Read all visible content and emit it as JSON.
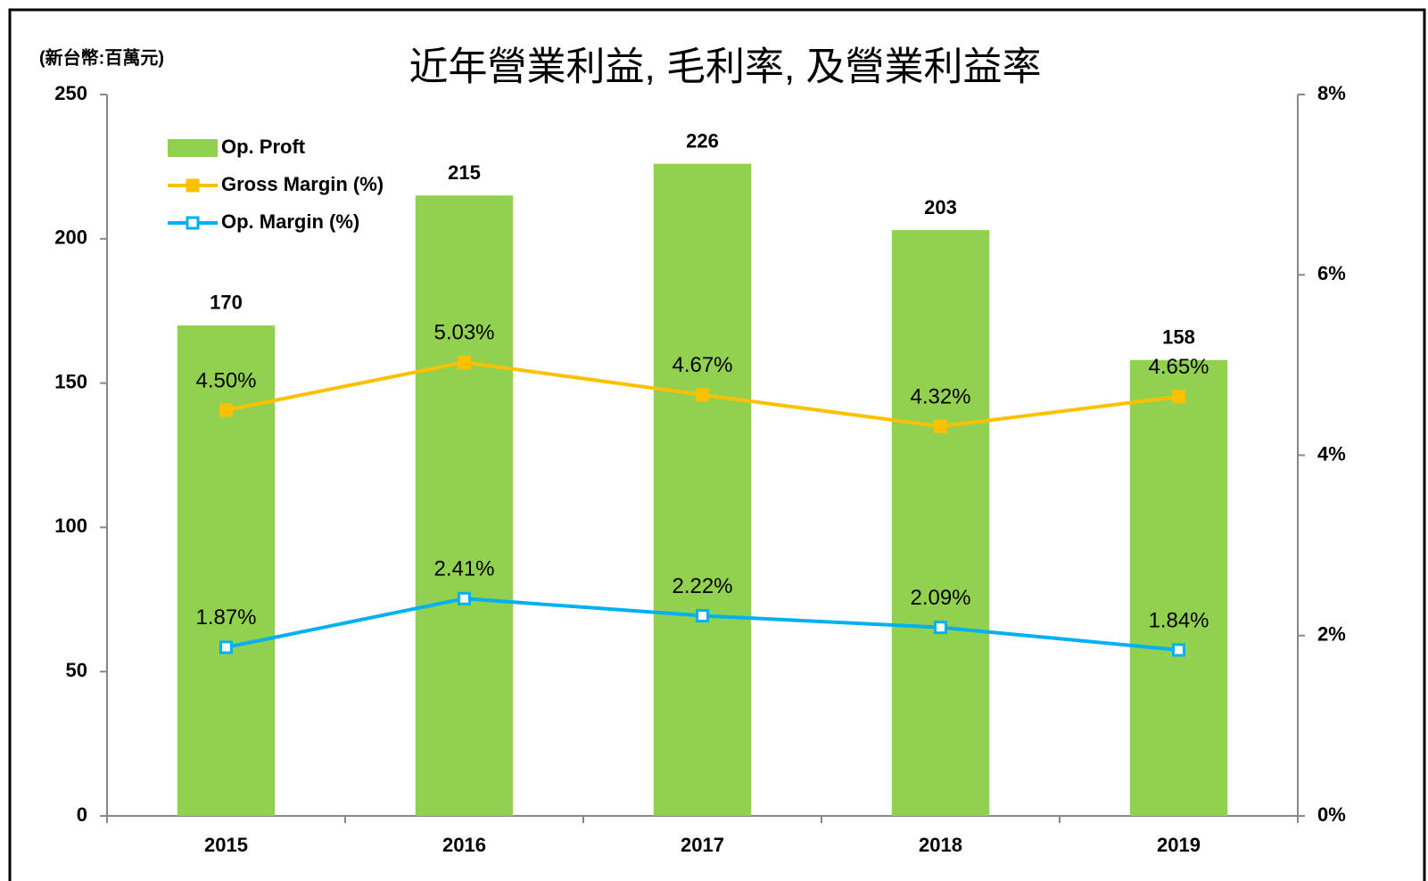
{
  "chart_data": {
    "type": "bar",
    "title": "近年營業利益, 毛利率, 及營業利益率",
    "y_label": "(新台幣:百萬元)",
    "categories": [
      "2015",
      "2016",
      "2017",
      "2018",
      "2019"
    ],
    "series": [
      {
        "name": "Op. Proft",
        "type": "bar",
        "color": "#92d050",
        "values": [
          170,
          215,
          226,
          203,
          158
        ]
      },
      {
        "name": "Gross Margin (%)",
        "type": "line",
        "axis": "y2",
        "color": "#ffc000",
        "values": [
          4.5,
          5.03,
          4.67,
          4.32,
          4.65
        ],
        "value_labels": [
          "4.50%",
          "5.03%",
          "4.67%",
          "4.32%",
          "4.65%"
        ]
      },
      {
        "name": "Op. Margin (%)",
        "type": "line",
        "axis": "y2",
        "color": "#00b0f0",
        "values": [
          1.87,
          2.41,
          2.22,
          2.09,
          1.84
        ],
        "value_labels": [
          "1.87%",
          "2.41%",
          "2.22%",
          "2.09%",
          "1.84%"
        ]
      }
    ],
    "ylim": [
      0,
      250
    ],
    "yticks": [
      0,
      50,
      100,
      150,
      200,
      250
    ],
    "y2lim": [
      0,
      8
    ],
    "y2ticks": [
      {
        "value": 0,
        "label": "0%"
      },
      {
        "value": 2,
        "label": "2%"
      },
      {
        "value": 4,
        "label": "4%"
      },
      {
        "value": 6,
        "label": "6%"
      },
      {
        "value": 8,
        "label": "8%"
      }
    ],
    "legend": "upper left"
  }
}
